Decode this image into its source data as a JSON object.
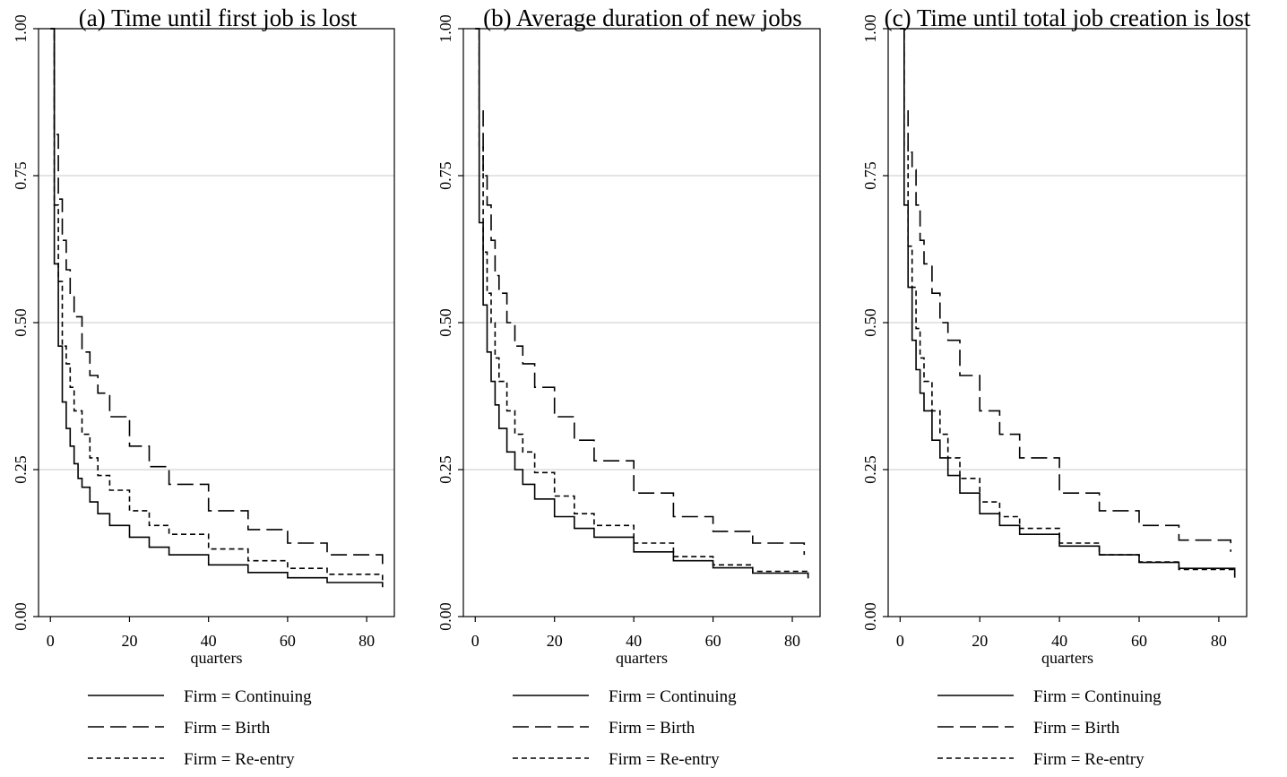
{
  "chart_data": [
    {
      "type": "line",
      "title": "(a) Time until first job is lost",
      "xlabel": "quarters",
      "ylabel": "",
      "xlim": [
        -3,
        87
      ],
      "ylim": [
        0,
        1
      ],
      "xticks": [
        "0",
        "20",
        "40",
        "60",
        "80"
      ],
      "yticks": [
        "0.00",
        "0.25",
        "0.50",
        "0.75",
        "1.00"
      ],
      "grid": "horizontal",
      "legend_position": "bottom",
      "series": [
        {
          "name": "Firm = Continuing",
          "style": "solid",
          "x": [
            0,
            1,
            2,
            3,
            4,
            5,
            6,
            7,
            8,
            10,
            12,
            15,
            20,
            25,
            30,
            40,
            50,
            60,
            70,
            84
          ],
          "y": [
            1.0,
            0.6,
            0.46,
            0.365,
            0.32,
            0.29,
            0.26,
            0.235,
            0.22,
            0.195,
            0.175,
            0.155,
            0.135,
            0.118,
            0.105,
            0.088,
            0.075,
            0.066,
            0.058,
            0.05
          ]
        },
        {
          "name": "Firm = Birth",
          "style": "long-dash",
          "x": [
            0,
            1,
            2,
            3,
            4,
            5,
            6,
            8,
            10,
            12,
            15,
            20,
            25,
            30,
            40,
            50,
            60,
            70,
            84
          ],
          "y": [
            1.0,
            0.82,
            0.71,
            0.64,
            0.59,
            0.55,
            0.51,
            0.45,
            0.41,
            0.38,
            0.34,
            0.29,
            0.255,
            0.225,
            0.18,
            0.148,
            0.125,
            0.105,
            0.082
          ]
        },
        {
          "name": "Firm = Re-entry",
          "style": "short-dash",
          "x": [
            0,
            1,
            2,
            3,
            4,
            5,
            6,
            8,
            10,
            12,
            15,
            20,
            25,
            30,
            40,
            50,
            60,
            70,
            84
          ],
          "y": [
            1.0,
            0.7,
            0.57,
            0.46,
            0.43,
            0.39,
            0.35,
            0.31,
            0.27,
            0.24,
            0.215,
            0.18,
            0.155,
            0.14,
            0.115,
            0.095,
            0.082,
            0.072,
            0.06
          ]
        }
      ]
    },
    {
      "type": "line",
      "title": "(b) Average duration of new jobs",
      "xlabel": "quarters",
      "ylabel": "",
      "xlim": [
        -3,
        87
      ],
      "ylim": [
        0,
        1
      ],
      "xticks": [
        "0",
        "20",
        "40",
        "60",
        "80"
      ],
      "yticks": [
        "0.00",
        "0.25",
        "0.50",
        "0.75",
        "1.00"
      ],
      "grid": "horizontal",
      "legend_position": "bottom",
      "series": [
        {
          "name": "Firm = Continuing",
          "style": "solid",
          "x": [
            0,
            1,
            2,
            3,
            4,
            5,
            6,
            8,
            10,
            12,
            15,
            20,
            25,
            30,
            40,
            50,
            60,
            70,
            84
          ],
          "y": [
            1.0,
            0.67,
            0.53,
            0.45,
            0.4,
            0.36,
            0.32,
            0.28,
            0.25,
            0.225,
            0.2,
            0.17,
            0.15,
            0.135,
            0.11,
            0.095,
            0.083,
            0.074,
            0.065
          ]
        },
        {
          "name": "Firm = Birth",
          "style": "long-dash",
          "x": [
            0,
            1,
            2,
            3,
            4,
            5,
            6,
            8,
            10,
            12,
            15,
            20,
            25,
            30,
            40,
            50,
            60,
            70,
            83
          ],
          "y": [
            1.0,
            0.86,
            0.75,
            0.7,
            0.64,
            0.58,
            0.55,
            0.5,
            0.46,
            0.43,
            0.39,
            0.34,
            0.3,
            0.265,
            0.21,
            0.17,
            0.145,
            0.125,
            0.105
          ]
        },
        {
          "name": "Firm = Re-entry",
          "style": "short-dash",
          "x": [
            0,
            1,
            2,
            3,
            4,
            5,
            6,
            8,
            10,
            12,
            15,
            20,
            25,
            30,
            40,
            50,
            60,
            70,
            84
          ],
          "y": [
            1.0,
            0.8,
            0.62,
            0.55,
            0.5,
            0.44,
            0.4,
            0.35,
            0.31,
            0.28,
            0.245,
            0.205,
            0.175,
            0.155,
            0.125,
            0.102,
            0.088,
            0.077,
            0.067
          ]
        }
      ]
    },
    {
      "type": "line",
      "title": "(c) Time until total job creation is lost",
      "xlabel": "quarters",
      "ylabel": "",
      "xlim": [
        -3,
        87
      ],
      "ylim": [
        0,
        1
      ],
      "xticks": [
        "0",
        "20",
        "40",
        "60",
        "80"
      ],
      "yticks": [
        "0.00",
        "0.25",
        "0.50",
        "0.75",
        "1.00"
      ],
      "grid": "horizontal",
      "legend_position": "bottom",
      "series": [
        {
          "name": "Firm = Continuing",
          "style": "solid",
          "x": [
            0,
            1,
            2,
            3,
            4,
            5,
            6,
            8,
            10,
            12,
            15,
            20,
            25,
            30,
            40,
            50,
            60,
            70,
            84
          ],
          "y": [
            1.0,
            0.7,
            0.56,
            0.47,
            0.42,
            0.38,
            0.35,
            0.3,
            0.27,
            0.24,
            0.21,
            0.175,
            0.155,
            0.14,
            0.12,
            0.105,
            0.092,
            0.082,
            0.07
          ]
        },
        {
          "name": "Firm = Birth",
          "style": "long-dash",
          "x": [
            0,
            1,
            2,
            3,
            4,
            5,
            6,
            8,
            10,
            12,
            15,
            20,
            25,
            30,
            40,
            50,
            60,
            70,
            83
          ],
          "y": [
            1.0,
            0.86,
            0.79,
            0.76,
            0.7,
            0.64,
            0.6,
            0.55,
            0.5,
            0.47,
            0.41,
            0.35,
            0.31,
            0.27,
            0.21,
            0.18,
            0.155,
            0.13,
            0.11
          ]
        },
        {
          "name": "Firm = Re-entry",
          "style": "short-dash",
          "x": [
            0,
            1,
            2,
            3,
            4,
            5,
            6,
            8,
            10,
            12,
            15,
            20,
            25,
            30,
            40,
            50,
            60,
            70,
            84
          ],
          "y": [
            1.0,
            0.8,
            0.63,
            0.56,
            0.49,
            0.44,
            0.4,
            0.35,
            0.31,
            0.27,
            0.235,
            0.195,
            0.17,
            0.15,
            0.125,
            0.105,
            0.093,
            0.08,
            0.065
          ]
        }
      ]
    }
  ]
}
